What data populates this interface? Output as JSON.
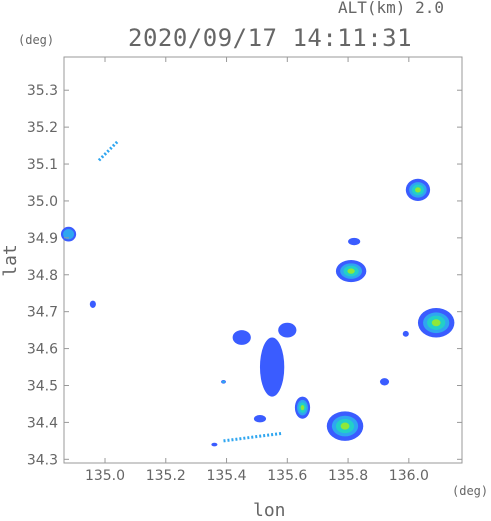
{
  "header": {
    "altitude_label": "ALT(km) 2.0",
    "timestamp": "2020/09/17 14:11:31",
    "y_unit": "(deg)",
    "x_unit": "(deg)"
  },
  "chart_data": {
    "type": "scatter",
    "title": "2020/09/17 14:11:31",
    "xlabel": "lon",
    "ylabel": "lat",
    "xlim": [
      134.865,
      136.175
    ],
    "ylim": [
      34.29,
      35.39
    ],
    "xticks": [
      135.0,
      135.2,
      135.4,
      135.6,
      135.8,
      136.0
    ],
    "xtick_labels": [
      "135.0",
      "135.2",
      "135.4",
      "135.6",
      "135.8",
      "136.0"
    ],
    "yticks": [
      34.3,
      34.4,
      34.5,
      34.6,
      34.7,
      34.8,
      34.9,
      35.0,
      35.1,
      35.2,
      35.3
    ],
    "ytick_labels": [
      "34.3",
      "34.4",
      "34.5",
      "34.6",
      "34.7",
      "34.8",
      "34.9",
      "35.0",
      "35.1",
      "35.2",
      "35.3"
    ],
    "grid": false,
    "colors": {
      "weak": "#3a5cff",
      "light": "#2fa6f0",
      "moderate": "#22d0c8",
      "heavy": "#8fe83a",
      "frame": "#999999"
    },
    "echo_cells": [
      {
        "lon": 136.09,
        "lat": 34.67,
        "rlon": 0.06,
        "rlat": 0.04,
        "core": "heavy"
      },
      {
        "lon": 135.79,
        "lat": 34.39,
        "rlon": 0.06,
        "rlat": 0.04,
        "core": "heavy"
      },
      {
        "lon": 136.03,
        "lat": 35.03,
        "rlon": 0.04,
        "rlat": 0.03,
        "core": "heavy"
      },
      {
        "lon": 135.81,
        "lat": 34.81,
        "rlon": 0.05,
        "rlat": 0.03,
        "core": "heavy"
      },
      {
        "lon": 135.65,
        "lat": 34.44,
        "rlon": 0.025,
        "rlat": 0.03,
        "core": "heavy"
      },
      {
        "lon": 134.88,
        "lat": 34.91,
        "rlon": 0.025,
        "rlat": 0.02,
        "core": "light"
      },
      {
        "lon": 135.82,
        "lat": 34.89,
        "rlon": 0.02,
        "rlat": 0.01,
        "core": "weak"
      },
      {
        "lon": 135.55,
        "lat": 34.55,
        "rlon": 0.04,
        "rlat": 0.08,
        "core": "weak"
      },
      {
        "lon": 135.45,
        "lat": 34.63,
        "rlon": 0.03,
        "rlat": 0.02,
        "core": "weak"
      },
      {
        "lon": 135.6,
        "lat": 34.65,
        "rlon": 0.03,
        "rlat": 0.02,
        "core": "weak"
      },
      {
        "lon": 135.92,
        "lat": 34.51,
        "rlon": 0.015,
        "rlat": 0.01,
        "core": "weak"
      },
      {
        "lon": 134.96,
        "lat": 34.72,
        "rlon": 0.01,
        "rlat": 0.01,
        "core": "weak"
      },
      {
        "lon": 135.99,
        "lat": 34.64,
        "rlon": 0.01,
        "rlat": 0.008,
        "core": "weak"
      },
      {
        "lon": 135.36,
        "lat": 34.34,
        "rlon": 0.01,
        "rlat": 0.005,
        "core": "weak"
      },
      {
        "lon": 135.39,
        "lat": 34.51,
        "rlon": 0.008,
        "rlat": 0.005,
        "core": "light"
      },
      {
        "lon": 135.51,
        "lat": 34.41,
        "rlon": 0.02,
        "rlat": 0.01,
        "core": "weak"
      }
    ],
    "streaks": [
      {
        "lon0": 134.98,
        "lat0": 35.11,
        "lon1": 135.04,
        "lat1": 35.16,
        "color": "light"
      },
      {
        "lon0": 135.39,
        "lat0": 34.35,
        "lon1": 135.58,
        "lat1": 34.37,
        "color": "light"
      }
    ]
  }
}
